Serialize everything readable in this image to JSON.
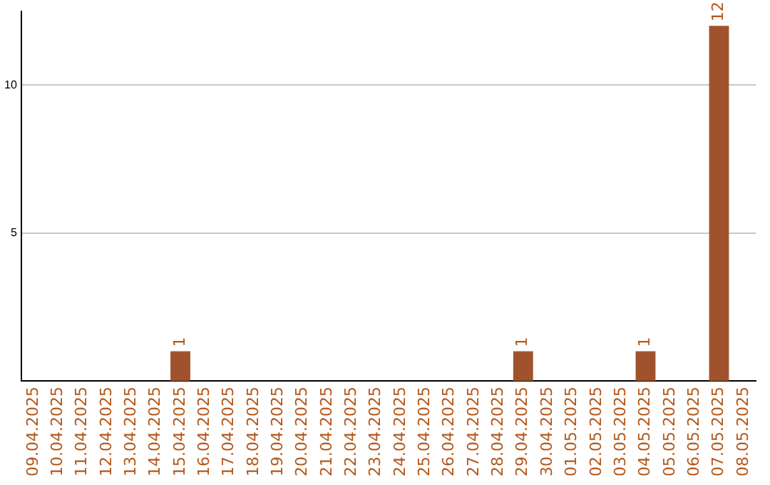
{
  "chart_data": {
    "type": "bar",
    "categories": [
      "09.04.2025",
      "10.04.2025",
      "11.04.2025",
      "12.04.2025",
      "13.04.2025",
      "14.04.2025",
      "15.04.2025",
      "16.04.2025",
      "17.04.2025",
      "18.04.2025",
      "19.04.2025",
      "20.04.2025",
      "21.04.2025",
      "22.04.2025",
      "23.04.2025",
      "24.04.2025",
      "25.04.2025",
      "26.04.2025",
      "27.04.2025",
      "28.04.2025",
      "29.04.2025",
      "30.04.2025",
      "01.05.2025",
      "02.05.2025",
      "03.05.2025",
      "04.05.2025",
      "05.05.2025",
      "06.05.2025",
      "07.05.2025",
      "08.05.2025"
    ],
    "values": [
      0,
      0,
      0,
      0,
      0,
      0,
      1,
      0,
      0,
      0,
      0,
      0,
      0,
      0,
      0,
      0,
      0,
      0,
      0,
      0,
      1,
      0,
      0,
      0,
      0,
      1,
      0,
      0,
      12,
      0
    ],
    "value_labels": [
      null,
      null,
      null,
      null,
      null,
      null,
      "1",
      null,
      null,
      null,
      null,
      null,
      null,
      null,
      null,
      null,
      null,
      null,
      null,
      null,
      "1",
      null,
      null,
      null,
      null,
      "1",
      null,
      null,
      "12",
      null
    ],
    "color": "#a0522d",
    "ylim": [
      0,
      12.5
    ],
    "yticks": [
      5,
      10
    ],
    "grid": "y",
    "legend": false
  }
}
